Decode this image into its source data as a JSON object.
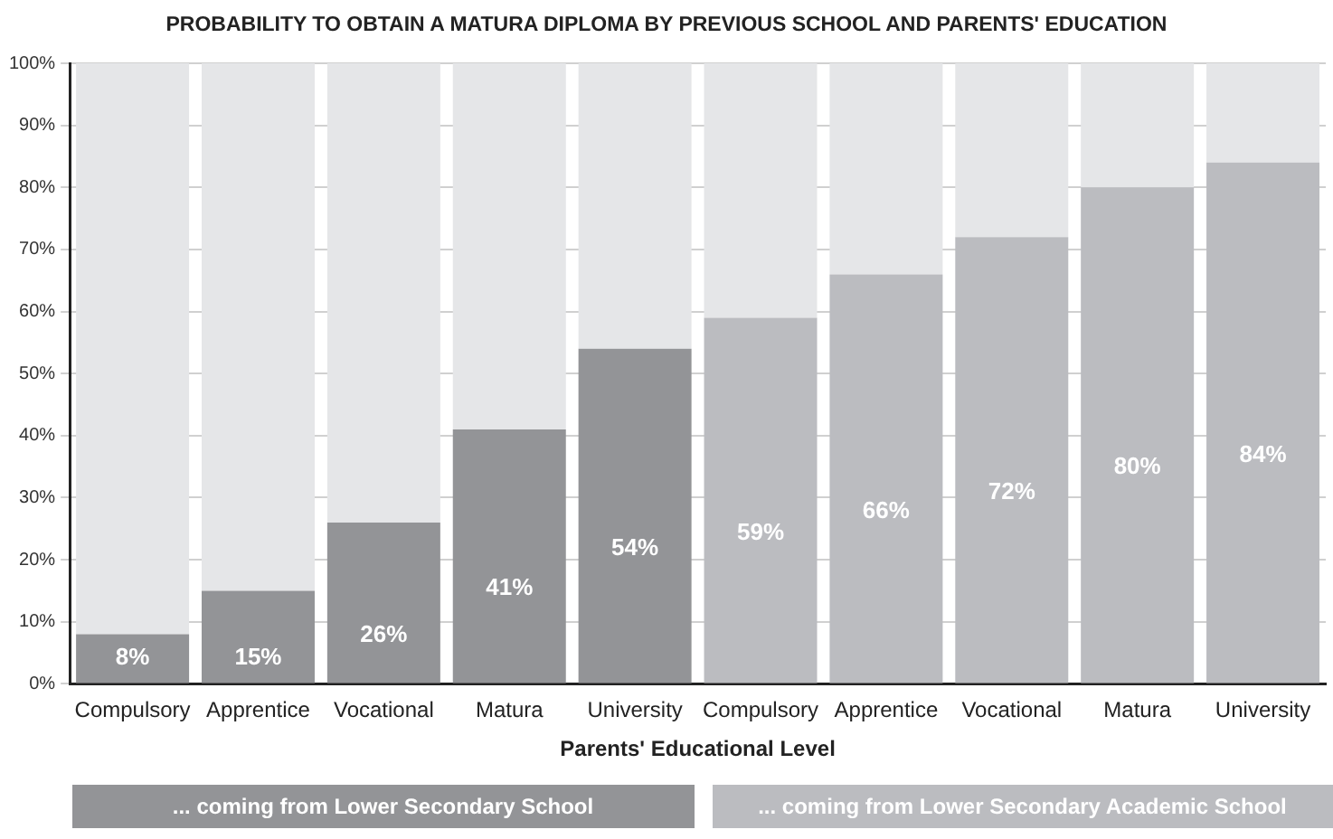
{
  "chart_data": {
    "type": "bar",
    "title": "PROBABILITY TO OBTAIN A MATURA DIPLOMA BY PREVIOUS SCHOOL AND PARENTS' EDUCATION",
    "xlabel": "Parents' Educational Level",
    "categories": [
      "Compulsory",
      "Apprentice",
      "Vocational",
      "Matura",
      "University",
      "Compulsory",
      "Apprentice",
      "Vocational",
      "Matura",
      "University"
    ],
    "stacked": true,
    "series": [
      {
        "name": "... coming from Lower Secondary School",
        "color": "#939497",
        "values": [
          8,
          15,
          26,
          41,
          54,
          null,
          null,
          null,
          null,
          null
        ],
        "value_labels": [
          "8%",
          "15%",
          "26%",
          "41%",
          "54%",
          null,
          null,
          null,
          null,
          null
        ]
      },
      {
        "name": "... coming from Lower Secondary Academic School",
        "color": "#bbbcc0",
        "values": [
          null,
          null,
          null,
          null,
          null,
          59,
          66,
          72,
          80,
          84
        ],
        "value_labels": [
          null,
          null,
          null,
          null,
          null,
          "59%",
          "66%",
          "72%",
          "80%",
          "84%"
        ]
      },
      {
        "color": "#e5e6e8",
        "values": [
          92,
          85,
          74,
          59,
          46,
          41,
          34,
          28,
          20,
          16
        ]
      }
    ],
    "ylim": [
      0,
      100
    ],
    "yticks": [
      {
        "value": 0,
        "label": "0%"
      },
      {
        "value": 10,
        "label": "10%"
      },
      {
        "value": 20,
        "label": "20%"
      },
      {
        "value": 30,
        "label": "30%"
      },
      {
        "value": 40,
        "label": "40%"
      },
      {
        "value": 50,
        "label": "50%"
      },
      {
        "value": 60,
        "label": "60%"
      },
      {
        "value": 70,
        "label": "70%"
      },
      {
        "value": 80,
        "label": "80%"
      },
      {
        "value": 90,
        "label": "90%"
      },
      {
        "value": 100,
        "label": "100%"
      }
    ],
    "grid": "y",
    "legend": "bottom"
  }
}
